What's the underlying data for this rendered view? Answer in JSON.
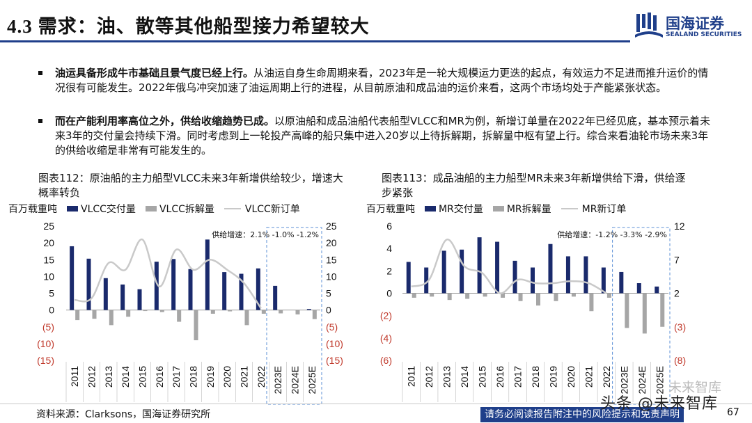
{
  "header": {
    "section_number": "4.3",
    "title": "需求：油、散等其他船型接力希望较大",
    "logo_text": "国海证券",
    "logo_sub": "SEALAND SECURITIES"
  },
  "bullets": [
    {
      "bold": "油运具备形成牛市基础且景气度已经上行。",
      "text": "从油运自身生命周期来看，2023年是一轮大规模运力更迭的起点，有效运力不足进而推升运价的情况很有可能发生。2022年俄乌冲突加速了油运周期上行的进程，从目前原油和成品油的运价来看，这两个市场均处于产能紧张状态。"
    },
    {
      "bold": "而在产能利用率高位之外，供给收缩趋势已成。",
      "text": "以原油船和成品油船代表船型VLCC和MR为例，新增订单量在2022年已经见底，基本预示着未来3年的交付量会持续下滑。同时考虑到上一轮投产高峰的船只集中进入20岁以上待拆解期，拆解量中枢有望上行。综合来看油轮市场未来3年的供给收缩是非常有可能发生的。"
    }
  ],
  "colors": {
    "navy": "#1a2a6c",
    "gray_bar": "#a6a6a6",
    "line": "#c9c9c9",
    "brand": "#1f3f8a",
    "dashed_box": "#5b8fd6"
  },
  "chart_data": [
    {
      "type": "bar",
      "caption": "图表112：原油船的主力船型VLCC未来3年新增供给较少，增速大概率转负",
      "unit_label": "百万载重吨",
      "legend": [
        "VLCC交付量",
        "VLCC拆解量",
        "VLCC新订单"
      ],
      "categories": [
        "2011",
        "2012",
        "2013",
        "2014",
        "2015",
        "2016",
        "2017",
        "2018",
        "2019",
        "2020",
        "2021",
        "2022",
        "2023E",
        "2024E",
        "2025E"
      ],
      "series": [
        {
          "name": "VLCC交付量",
          "kind": "bar",
          "values": [
            19.0,
            15.3,
            9.5,
            7.6,
            6.2,
            14.4,
            15.2,
            12.2,
            21.0,
            11.3,
            10.8,
            12.4,
            7.2,
            0,
            0.3
          ]
        },
        {
          "name": "VLCC拆解量",
          "kind": "bar",
          "values": [
            -3.0,
            -2.6,
            -4.5,
            -2.0,
            -0.3,
            -0.6,
            -3.5,
            -9.0,
            -1.1,
            -0.4,
            -4.5,
            -1.1,
            -1.0,
            -1.3,
            -2.7
          ]
        },
        {
          "name": "VLCC新订单",
          "kind": "line",
          "values": [
            3.0,
            3.5,
            14.0,
            12.0,
            21.0,
            7.0,
            18.0,
            12.0,
            15.0,
            12.0,
            8.0,
            0.5,
            null,
            null,
            null
          ]
        }
      ],
      "ylim": [
        -15,
        25
      ],
      "yticks": [
        25,
        20,
        15,
        10,
        5,
        0,
        -5,
        -10,
        -15
      ],
      "ytick_labels": [
        "25",
        "20",
        "15",
        "10",
        "5",
        "0",
        "(5)",
        "(10)",
        "(15)"
      ],
      "y2ticks": [
        25,
        20,
        15,
        10,
        5,
        0,
        -5,
        -10,
        -15
      ],
      "y2tick_labels": [
        "25",
        "20",
        "15",
        "10",
        "5",
        "0",
        "(5)",
        "(10)",
        "(15)"
      ],
      "annotation": "供给增速：2.1%  -1.0%  -1.2%",
      "highlight_from": "2023E"
    },
    {
      "type": "bar",
      "caption": "图表113：成品油船的主力船型MR未来3年新增供给下滑，供给逐步紧张",
      "unit_label": "百万载重吨",
      "legend": [
        "MR交付量",
        "MR拆解量",
        "MR新订单"
      ],
      "categories": [
        "2011",
        "2012",
        "2013",
        "2014",
        "2015",
        "2016",
        "2017",
        "2018",
        "2019",
        "2020",
        "2021",
        "2022",
        "2023E",
        "2024E",
        "2025E"
      ],
      "series": [
        {
          "name": "MR交付量",
          "kind": "bar",
          "values": [
            2.8,
            2.3,
            3.8,
            3.9,
            5.0,
            4.6,
            2.9,
            2.3,
            4.4,
            3.3,
            3.3,
            2.3,
            1.9,
            0.9,
            0.6
          ]
        },
        {
          "name": "MR拆解量",
          "kind": "bar",
          "values": [
            -0.4,
            -0.3,
            -0.6,
            -0.5,
            -0.3,
            -0.4,
            -0.7,
            -1.1,
            -0.7,
            -0.3,
            -1.6,
            -0.4,
            -3.1,
            -3.6,
            -3.0
          ]
        },
        {
          "name": "MR新订单",
          "kind": "line",
          "values": [
            3.0,
            4.0,
            10.0,
            6.0,
            5.0,
            2.0,
            4.0,
            3.5,
            3.5,
            3.8,
            3.5,
            2.0,
            null,
            null,
            null
          ]
        }
      ],
      "ylim": [
        -6,
        6
      ],
      "yticks": [
        6,
        4,
        2,
        0,
        -2,
        -4,
        -6
      ],
      "ytick_labels": [
        "6",
        "4",
        "2",
        "0",
        "(2)",
        "(4)",
        "(6)"
      ],
      "y2lim": [
        -8,
        12
      ],
      "y2ticks": [
        12,
        7,
        2,
        -3,
        -8
      ],
      "y2tick_labels": [
        "12",
        "7",
        "2",
        "(3)",
        "(8)"
      ],
      "annotation": "供给增速：-1.2%  -3.3%  -2.9%",
      "highlight_from": "2023E"
    }
  ],
  "footer": {
    "source": "资料来源：Clarksons，国海证券研究所",
    "disclaimer": "请务必阅读报告附注中的风险提示和免责声明",
    "page": "67",
    "watermark": "头条 @未来智库",
    "watermark2": "未来智库"
  }
}
